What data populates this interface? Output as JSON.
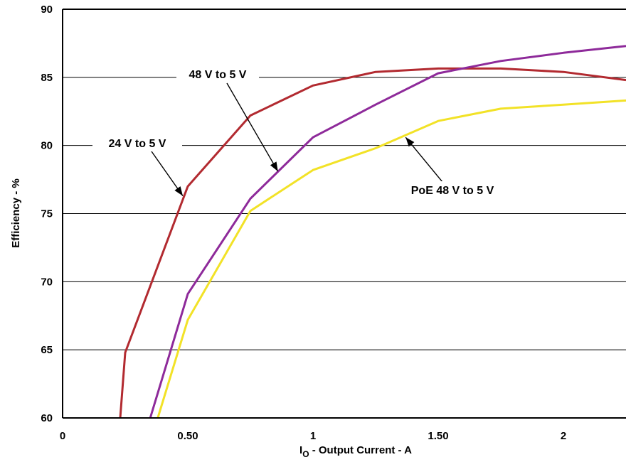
{
  "chart_data": {
    "type": "line",
    "xlabel_main": "I",
    "xlabel_sub": "O",
    "xlabel_rest": " - Output Current - A",
    "ylabel": "Efficiency - %",
    "xlim": [
      0,
      2.25
    ],
    "ylim": [
      60,
      90
    ],
    "grid": "horizontal",
    "xticks": [
      {
        "v": 0,
        "label": "0"
      },
      {
        "v": 0.5,
        "label": "0.50"
      },
      {
        "v": 1,
        "label": "1"
      },
      {
        "v": 1.5,
        "label": "1.50"
      },
      {
        "v": 2,
        "label": "2"
      }
    ],
    "yticks": [
      {
        "v": 60,
        "label": "60"
      },
      {
        "v": 65,
        "label": "65"
      },
      {
        "v": 70,
        "label": "70"
      },
      {
        "v": 75,
        "label": "75"
      },
      {
        "v": 80,
        "label": "80"
      },
      {
        "v": 85,
        "label": "85"
      },
      {
        "v": 90,
        "label": "90"
      }
    ],
    "series": [
      {
        "name": "24 V to 5 V",
        "color": "#b22a30",
        "points": [
          [
            0.23,
            60.0
          ],
          [
            0.25,
            64.8
          ],
          [
            0.5,
            77.0
          ],
          [
            0.75,
            82.2
          ],
          [
            1.0,
            84.4
          ],
          [
            1.25,
            85.4
          ],
          [
            1.5,
            85.65
          ],
          [
            1.75,
            85.65
          ],
          [
            2.0,
            85.4
          ],
          [
            2.25,
            84.8
          ]
        ]
      },
      {
        "name": "48 V to 5 V",
        "color": "#8e2a9a",
        "points": [
          [
            0.35,
            60.0
          ],
          [
            0.5,
            69.1
          ],
          [
            0.75,
            76.1
          ],
          [
            1.0,
            80.6
          ],
          [
            1.25,
            83.0
          ],
          [
            1.5,
            85.3
          ],
          [
            1.75,
            86.2
          ],
          [
            2.0,
            86.8
          ],
          [
            2.25,
            87.3
          ]
        ]
      },
      {
        "name": "PoE 48 V to 5 V",
        "color": "#f2e227",
        "points": [
          [
            0.38,
            60.0
          ],
          [
            0.5,
            67.2
          ],
          [
            0.75,
            75.2
          ],
          [
            1.0,
            78.2
          ],
          [
            1.25,
            79.8
          ],
          [
            1.5,
            81.8
          ],
          [
            1.75,
            82.7
          ],
          [
            2.0,
            83.0
          ],
          [
            2.25,
            83.3
          ]
        ]
      }
    ],
    "annotations": [
      {
        "text": "24 V to 5 V",
        "arrow_to": [
          0.48,
          76.3
        ]
      },
      {
        "text": "48 V to 5 V",
        "arrow_to": [
          0.86,
          78.1
        ]
      },
      {
        "text": "PoE 48 V to 5 V",
        "arrow_to": [
          1.37,
          80.6
        ]
      }
    ]
  }
}
